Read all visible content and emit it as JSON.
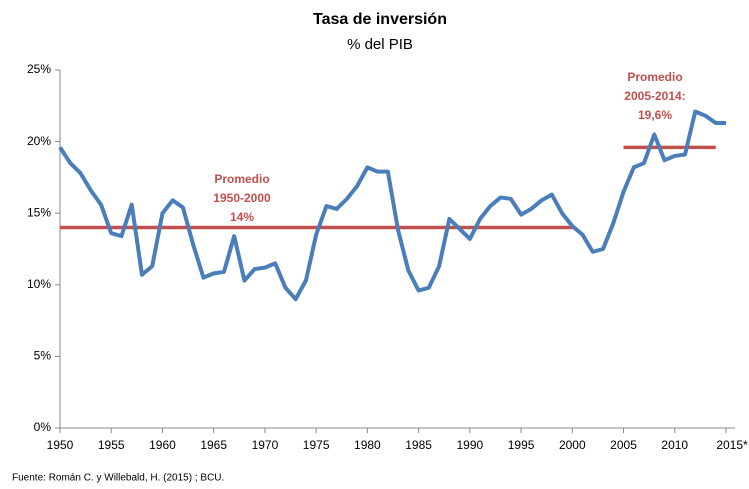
{
  "chart_data": {
    "type": "line",
    "title": "Tasa de inversión",
    "subtitle": "% del PIB",
    "source": "Fuente: Román C. y Willebald, H. (2015) ; BCU.",
    "x": [
      1950,
      1951,
      1952,
      1953,
      1954,
      1955,
      1956,
      1957,
      1958,
      1959,
      1960,
      1961,
      1962,
      1963,
      1964,
      1965,
      1966,
      1967,
      1968,
      1969,
      1970,
      1971,
      1972,
      1973,
      1974,
      1975,
      1976,
      1977,
      1978,
      1979,
      1980,
      1981,
      1982,
      1983,
      1984,
      1985,
      1986,
      1987,
      1988,
      1989,
      1990,
      1991,
      1992,
      1993,
      1994,
      1995,
      1996,
      1997,
      1998,
      1999,
      2000,
      2001,
      2002,
      2003,
      2004,
      2005,
      2006,
      2007,
      2008,
      2009,
      2010,
      2011,
      2012,
      2013,
      2014,
      2015
    ],
    "series": [
      {
        "name": "Tasa de inversión",
        "color": "#4a7ebb",
        "values": [
          19.6,
          18.5,
          17.8,
          16.6,
          15.6,
          13.6,
          13.4,
          15.6,
          10.7,
          11.3,
          15.0,
          15.9,
          15.4,
          12.8,
          10.5,
          10.8,
          10.9,
          13.4,
          10.3,
          11.1,
          11.2,
          11.5,
          9.8,
          9.0,
          10.3,
          13.5,
          15.5,
          15.3,
          16.0,
          16.9,
          18.2,
          17.9,
          17.9,
          13.8,
          11.0,
          9.6,
          9.8,
          11.3,
          14.6,
          13.9,
          13.2,
          14.6,
          15.5,
          16.1,
          16.0,
          14.9,
          15.3,
          15.9,
          16.3,
          15.0,
          14.1,
          13.5,
          12.3,
          12.5,
          14.3,
          16.5,
          18.2,
          18.5,
          20.5,
          18.7,
          19.0,
          19.1,
          22.1,
          21.8,
          21.3,
          21.3
        ]
      }
    ],
    "averages": [
      {
        "color": "#c0504d",
        "x": [
          1950,
          2000
        ],
        "value": 14,
        "label": [
          "Promedio",
          "1950-2000",
          "14%"
        ]
      },
      {
        "color": "#c0504d",
        "x": [
          2005,
          2014
        ],
        "value": 19.6,
        "label": [
          "Promedio",
          "2005-2014:",
          "19,6%"
        ]
      }
    ],
    "xlim": [
      1950,
      2015
    ],
    "xticks": [
      1950,
      1955,
      1960,
      1965,
      1970,
      1975,
      1980,
      1985,
      1990,
      1995,
      2000,
      2005,
      2010,
      {
        "value": 2015,
        "label": "2015*"
      }
    ],
    "ylim": [
      0,
      25
    ],
    "yticks": [
      {
        "value": 0,
        "label": "0%"
      },
      {
        "value": 5,
        "label": "5%"
      },
      {
        "value": 10,
        "label": "10%"
      },
      {
        "value": 15,
        "label": "15%"
      },
      {
        "value": 20,
        "label": "20%"
      },
      {
        "value": 25,
        "label": "25%"
      }
    ],
    "grid": false
  }
}
